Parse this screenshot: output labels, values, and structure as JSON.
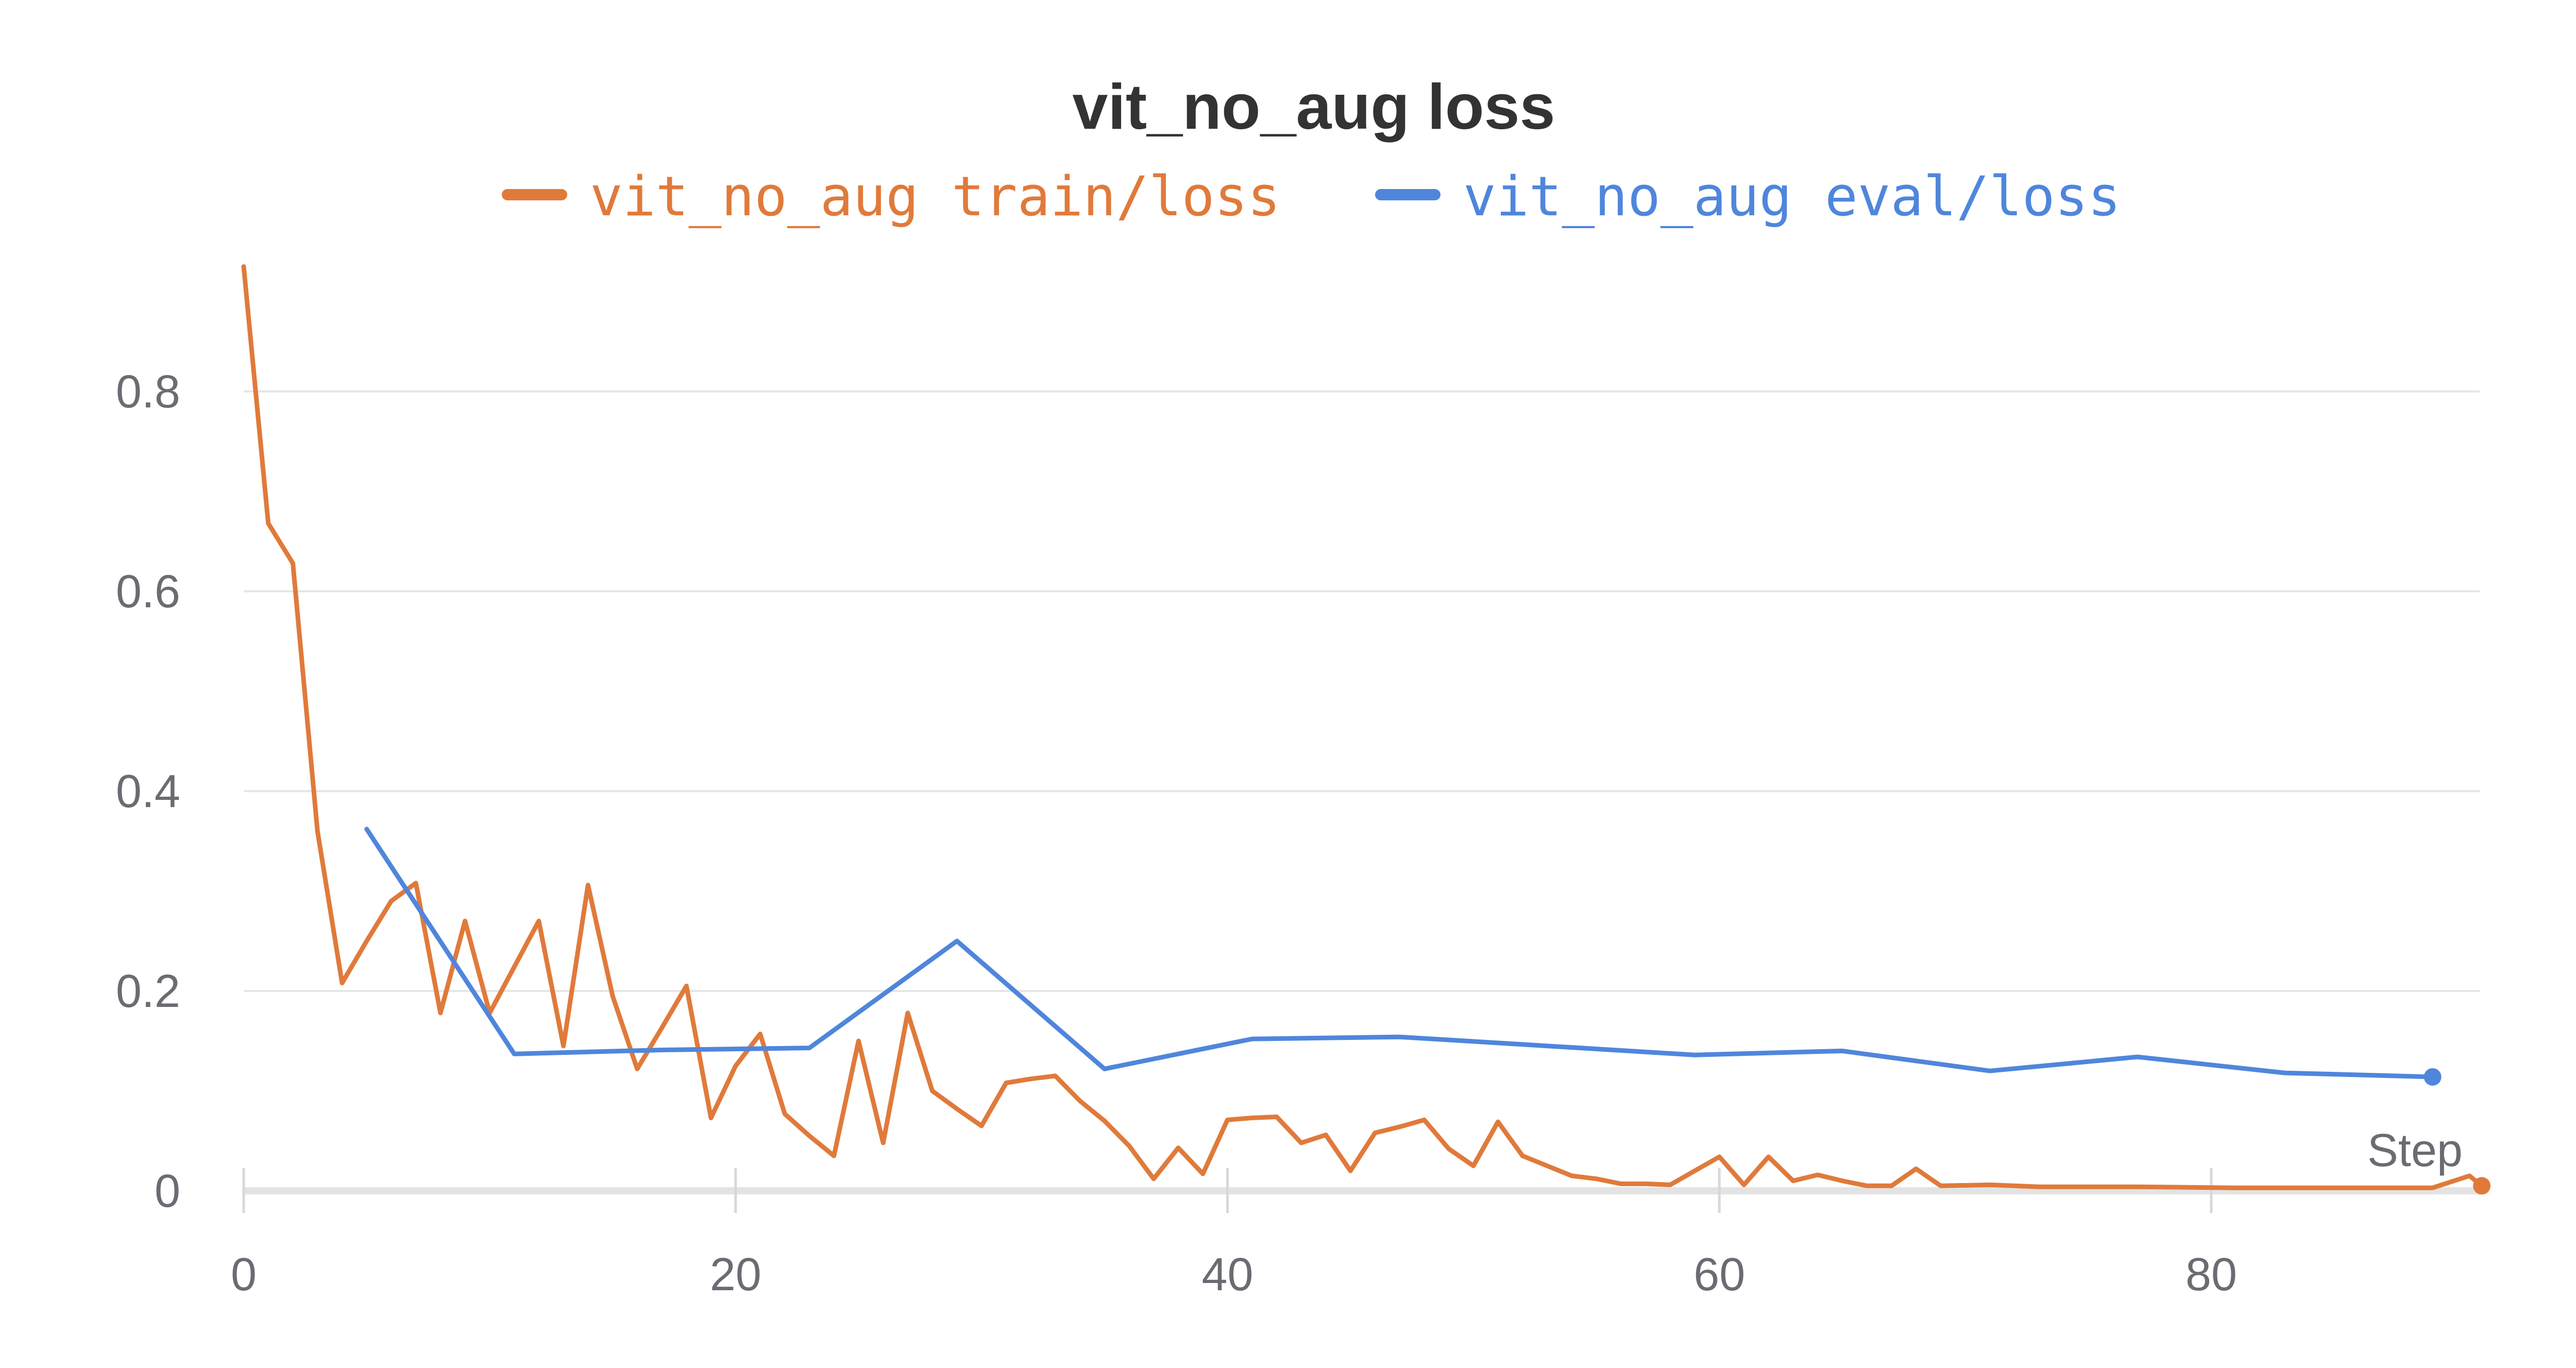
{
  "chart_data": {
    "type": "line",
    "title": "vit_no_aug loss",
    "xlabel": "Step",
    "ylabel": "",
    "xlim": [
      0,
      91
    ],
    "ylim": [
      0,
      0.93
    ],
    "xticks": [
      0,
      20,
      40,
      60,
      80
    ],
    "yticks": [
      0,
      0.2,
      0.4,
      0.6,
      0.8
    ],
    "xtick_labels": [
      "0",
      "20",
      "40",
      "60",
      "80"
    ],
    "ytick_labels": [
      "0",
      "0.2",
      "0.4",
      "0.6",
      "0.8"
    ],
    "grid": true,
    "legend_position": "top-center",
    "series": [
      {
        "name": "vit_no_aug train/loss",
        "color": "#e07a3b",
        "points": [
          [
            0,
            0.925
          ],
          [
            1,
            0.668
          ],
          [
            2,
            0.628
          ],
          [
            3,
            0.36
          ],
          [
            4,
            0.208
          ],
          [
            5,
            0.25
          ],
          [
            6,
            0.29
          ],
          [
            7,
            0.308
          ],
          [
            8,
            0.178
          ],
          [
            9,
            0.27
          ],
          [
            10,
            0.178
          ],
          [
            11,
            0.224
          ],
          [
            12,
            0.27
          ],
          [
            13,
            0.145
          ],
          [
            14,
            0.306
          ],
          [
            15,
            0.195
          ],
          [
            16,
            0.122
          ],
          [
            17,
            0.163
          ],
          [
            18,
            0.205
          ],
          [
            19,
            0.073
          ],
          [
            20,
            0.125
          ],
          [
            21,
            0.157
          ],
          [
            22,
            0.077
          ],
          [
            23,
            0.055
          ],
          [
            24,
            0.035
          ],
          [
            25,
            0.15
          ],
          [
            26,
            0.048
          ],
          [
            27,
            0.178
          ],
          [
            28,
            0.1
          ],
          [
            29,
            0.082
          ],
          [
            30,
            0.065
          ],
          [
            31,
            0.108
          ],
          [
            32,
            0.112
          ],
          [
            33,
            0.115
          ],
          [
            34,
            0.09
          ],
          [
            35,
            0.07
          ],
          [
            36,
            0.045
          ],
          [
            37,
            0.012
          ],
          [
            38,
            0.043
          ],
          [
            39,
            0.017
          ],
          [
            40,
            0.071
          ],
          [
            41,
            0.073
          ],
          [
            42,
            0.074
          ],
          [
            43,
            0.048
          ],
          [
            44,
            0.056
          ],
          [
            45,
            0.02
          ],
          [
            46,
            0.058
          ],
          [
            47,
            0.064
          ],
          [
            48,
            0.071
          ],
          [
            49,
            0.042
          ],
          [
            50,
            0.025
          ],
          [
            51,
            0.069
          ],
          [
            52,
            0.035
          ],
          [
            53,
            0.025
          ],
          [
            54,
            0.015
          ],
          [
            55,
            0.012
          ],
          [
            56,
            0.007
          ],
          [
            57,
            0.007
          ],
          [
            58,
            0.006
          ],
          [
            59,
            0.02
          ],
          [
            60,
            0.034
          ],
          [
            61,
            0.006
          ],
          [
            62,
            0.034
          ],
          [
            63,
            0.01
          ],
          [
            64,
            0.016
          ],
          [
            65,
            0.01
          ],
          [
            66,
            0.005
          ],
          [
            67,
            0.005
          ],
          [
            68,
            0.022
          ],
          [
            69,
            0.005
          ],
          [
            71,
            0.006
          ],
          [
            73,
            0.004
          ],
          [
            77,
            0.004
          ],
          [
            81,
            0.003
          ],
          [
            85,
            0.003
          ],
          [
            89,
            0.003
          ],
          [
            90.5,
            0.015
          ],
          [
            91,
            0.005
          ]
        ]
      },
      {
        "name": "vit_no_aug eval/loss",
        "color": "#4f86dc",
        "points": [
          [
            5,
            0.362
          ],
          [
            11,
            0.137
          ],
          [
            17,
            0.141
          ],
          [
            23,
            0.143
          ],
          [
            29,
            0.25
          ],
          [
            35,
            0.122
          ],
          [
            41,
            0.152
          ],
          [
            47,
            0.154
          ],
          [
            53,
            0.145
          ],
          [
            59,
            0.136
          ],
          [
            65,
            0.14
          ],
          [
            71,
            0.12
          ],
          [
            77,
            0.134
          ],
          [
            83,
            0.118
          ],
          [
            89,
            0.114
          ]
        ]
      }
    ]
  }
}
